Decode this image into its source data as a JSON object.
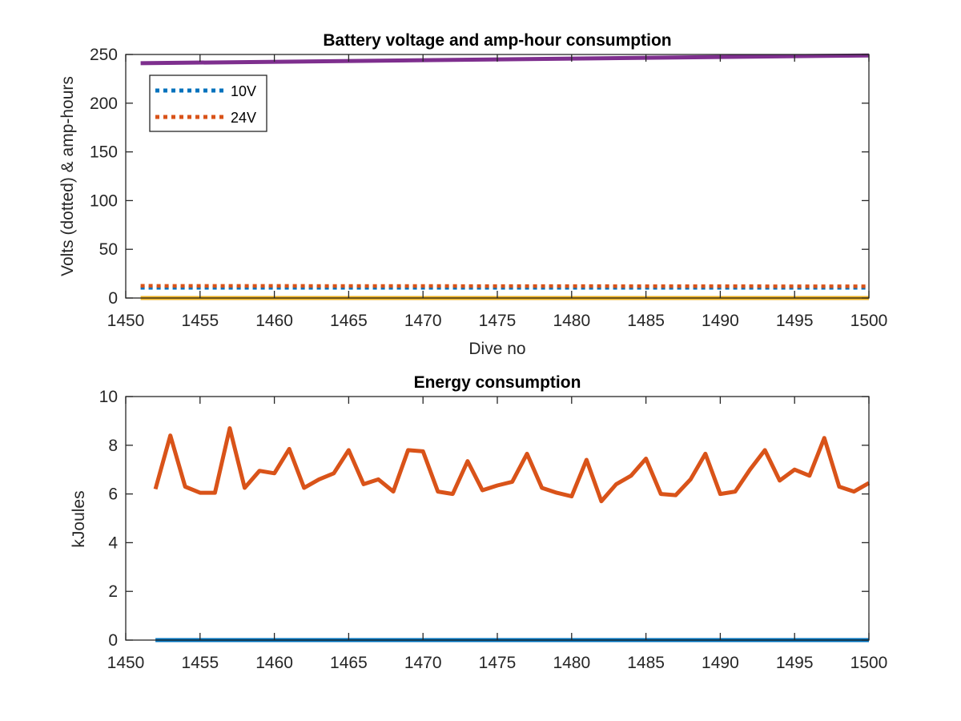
{
  "chart_data": [
    {
      "type": "line",
      "title": "Battery voltage and amp-hour consumption",
      "xlabel": "Dive no",
      "ylabel": "Volts (dotted) & amp-hours",
      "xlim": [
        1450,
        1500
      ],
      "ylim": [
        0,
        250
      ],
      "xticks": [
        "1450",
        "1455",
        "1460",
        "1465",
        "1470",
        "1475",
        "1480",
        "1485",
        "1490",
        "1495",
        "1500"
      ],
      "yticks": [
        "0",
        "50",
        "100",
        "150",
        "200",
        "250"
      ],
      "grid": false,
      "legend_position": "top-left",
      "series": [
        {
          "name": "10V",
          "color": "#0072BD",
          "style": "dotted",
          "x": [
            1451,
            1500
          ],
          "values": [
            10.5,
            10.5
          ]
        },
        {
          "name": "24V",
          "color": "#D95319",
          "style": "dotted",
          "x": [
            1451,
            1500
          ],
          "values": [
            12.5,
            12.0
          ]
        },
        {
          "color": "#7E2F8E",
          "style": "solid",
          "x": [
            1451,
            1500
          ],
          "values": [
            241,
            249
          ]
        },
        {
          "color": "#EDB120",
          "style": "solid",
          "x": [
            1451,
            1500
          ],
          "values": [
            0,
            0
          ]
        }
      ]
    },
    {
      "type": "line",
      "title": "Energy consumption",
      "xlabel": "",
      "ylabel": "kJoules",
      "xlim": [
        1450,
        1500
      ],
      "ylim": [
        0,
        10
      ],
      "xticks": [
        "1450",
        "1455",
        "1460",
        "1465",
        "1470",
        "1475",
        "1480",
        "1485",
        "1490",
        "1495",
        "1500"
      ],
      "yticks": [
        "0",
        "2",
        "4",
        "6",
        "8",
        "10"
      ],
      "grid": false,
      "series": [
        {
          "color": "#D95319",
          "style": "solid",
          "x": [
            1452,
            1453,
            1454,
            1455,
            1456,
            1457,
            1458,
            1459,
            1460,
            1461,
            1462,
            1463,
            1464,
            1465,
            1466,
            1467,
            1468,
            1469,
            1470,
            1471,
            1472,
            1473,
            1474,
            1475,
            1476,
            1477,
            1478,
            1479,
            1480,
            1481,
            1482,
            1483,
            1484,
            1485,
            1486,
            1487,
            1488,
            1489,
            1490,
            1491,
            1492,
            1493,
            1494,
            1495,
            1496,
            1497,
            1498,
            1499,
            1500
          ],
          "values": [
            6.2,
            8.4,
            6.3,
            6.05,
            6.05,
            8.7,
            6.25,
            6.95,
            6.85,
            7.85,
            6.25,
            6.6,
            6.85,
            7.8,
            6.4,
            6.6,
            6.1,
            7.8,
            7.75,
            6.1,
            6.0,
            7.35,
            6.15,
            6.35,
            6.5,
            7.65,
            6.25,
            6.05,
            5.9,
            7.4,
            5.7,
            6.4,
            6.75,
            7.45,
            6.0,
            5.95,
            6.6,
            7.65,
            6.0,
            6.1,
            7.0,
            7.8,
            6.55,
            7.0,
            6.75,
            8.3,
            6.3,
            6.1,
            6.45
          ]
        },
        {
          "color": "#0072BD",
          "style": "solid",
          "x": [
            1452,
            1500
          ],
          "values": [
            0,
            0
          ]
        }
      ]
    }
  ]
}
